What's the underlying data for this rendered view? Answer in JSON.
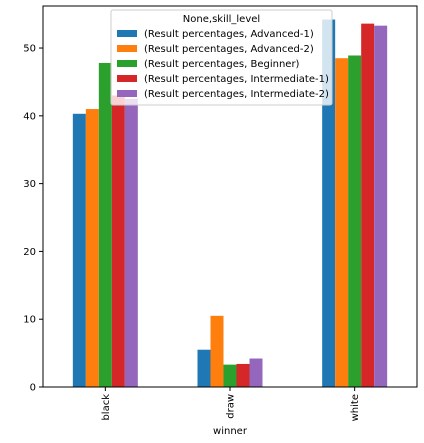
{
  "chart_data": {
    "type": "bar",
    "categories": [
      "black",
      "draw",
      "white"
    ],
    "series": [
      {
        "name": "(Result percentages, Advanced-1)",
        "color": "#1f77b4",
        "values": [
          40.3,
          5.5,
          54.2
        ]
      },
      {
        "name": "(Result percentages, Advanced-2)",
        "color": "#ff7f0e",
        "values": [
          41.0,
          10.5,
          48.5
        ]
      },
      {
        "name": "(Result percentages, Beginner)",
        "color": "#2ca02c",
        "values": [
          47.8,
          3.3,
          48.9
        ]
      },
      {
        "name": "(Result percentages, Intermediate-1)",
        "color": "#d62728",
        "values": [
          43.0,
          3.4,
          53.6
        ]
      },
      {
        "name": "(Result percentages, Intermediate-2)",
        "color": "#9467bd",
        "values": [
          42.5,
          4.2,
          53.3
        ]
      }
    ],
    "legend_title": "None,skill_level",
    "xlabel": "winner",
    "ylabel": "",
    "ylim": [
      0,
      56.2
    ],
    "yticks": [
      0,
      10,
      20,
      30,
      40,
      50
    ],
    "grid": false,
    "legend_position": "top-center",
    "xtick_rotation": 90
  }
}
